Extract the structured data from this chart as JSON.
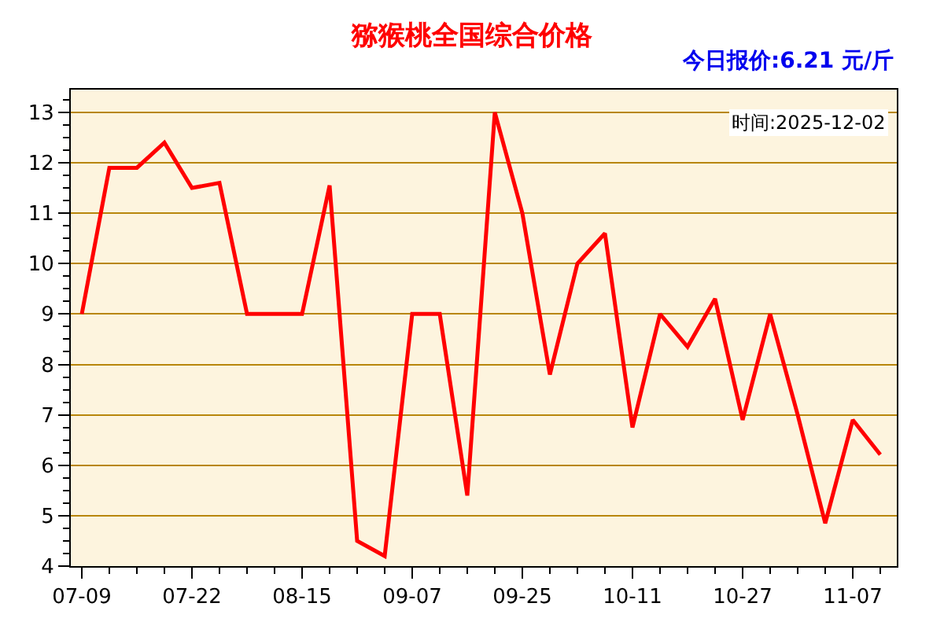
{
  "chart_data": {
    "type": "line",
    "title": "猕猴桃全国综合价格",
    "categories": [
      "07-09",
      null,
      null,
      null,
      "07-22",
      null,
      null,
      null,
      "08-15",
      null,
      null,
      null,
      "09-07",
      null,
      null,
      null,
      "09-25",
      null,
      null,
      null,
      "10-11",
      null,
      null,
      null,
      "10-27",
      null,
      null,
      null,
      "11-07",
      null
    ],
    "series": [
      {
        "color": "#ff0000",
        "values": [
          9.0,
          11.9,
          11.9,
          12.4,
          11.5,
          11.6,
          9.0,
          9.0,
          9.0,
          11.55,
          4.5,
          4.2,
          9.0,
          9.0,
          5.4,
          13.0,
          11.0,
          7.8,
          10.0,
          10.6,
          6.75,
          9.0,
          8.35,
          9.3,
          6.9,
          9.0,
          7.0,
          4.85,
          6.9,
          6.21
        ]
      }
    ],
    "ylim": [
      4,
      13.45
    ],
    "yticks": [
      4,
      5,
      6,
      7,
      8,
      9,
      10,
      11,
      12,
      13
    ],
    "grid": "y",
    "marker": "none",
    "line_style": "solid",
    "annotations": [
      "今日报价:6.21 元/斤",
      "时间:2025-12-02"
    ]
  }
}
